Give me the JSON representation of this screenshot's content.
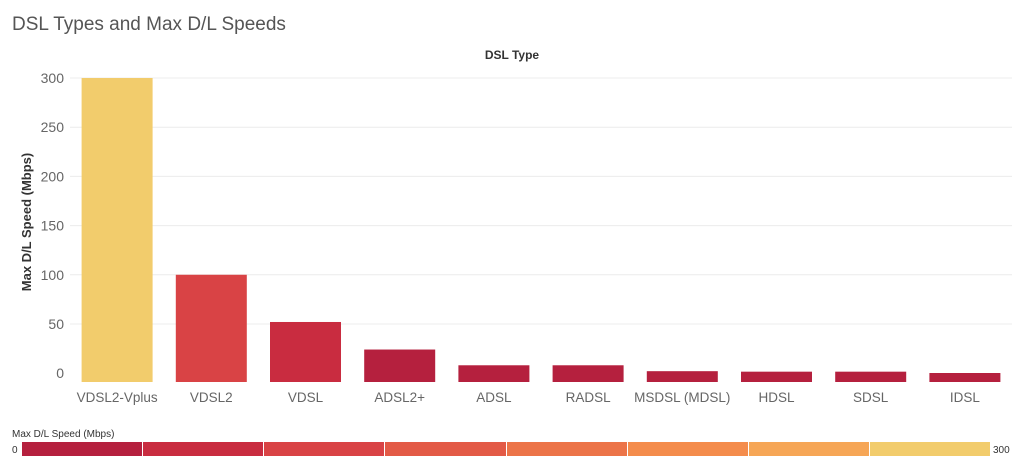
{
  "page": {
    "title": "DSL Types and Max D/L Speeds"
  },
  "chart_data": {
    "type": "bar",
    "title": "DSL Types and Max D/L Speeds",
    "xlabel": "DSL Type",
    "ylabel": "Max D/L Speed (Mbps)",
    "categories": [
      "VDSL2-Vplus",
      "VDSL2",
      "VDSL",
      "ADSL2+",
      "ADSL",
      "RADSL",
      "MSDSL (MDSL)",
      "HDSL",
      "SDSL",
      "IDSL"
    ],
    "values": [
      300,
      100,
      52,
      24,
      8,
      8,
      2,
      1.5,
      1.5,
      0.144
    ],
    "ylim": [
      -9,
      300
    ],
    "yticks": [
      0,
      50,
      100,
      150,
      200,
      250,
      300
    ],
    "grid": true,
    "color_scale": {
      "title": "Max D/L Speed (Mbps)",
      "min": 0,
      "max": 300,
      "min_label": "0",
      "max_label": "300",
      "colors": [
        "#b5203e",
        "#c92c40",
        "#d94345",
        "#e35a46",
        "#ec7448",
        "#f48c4c",
        "#f6a656",
        "#f2cc6c"
      ]
    }
  }
}
